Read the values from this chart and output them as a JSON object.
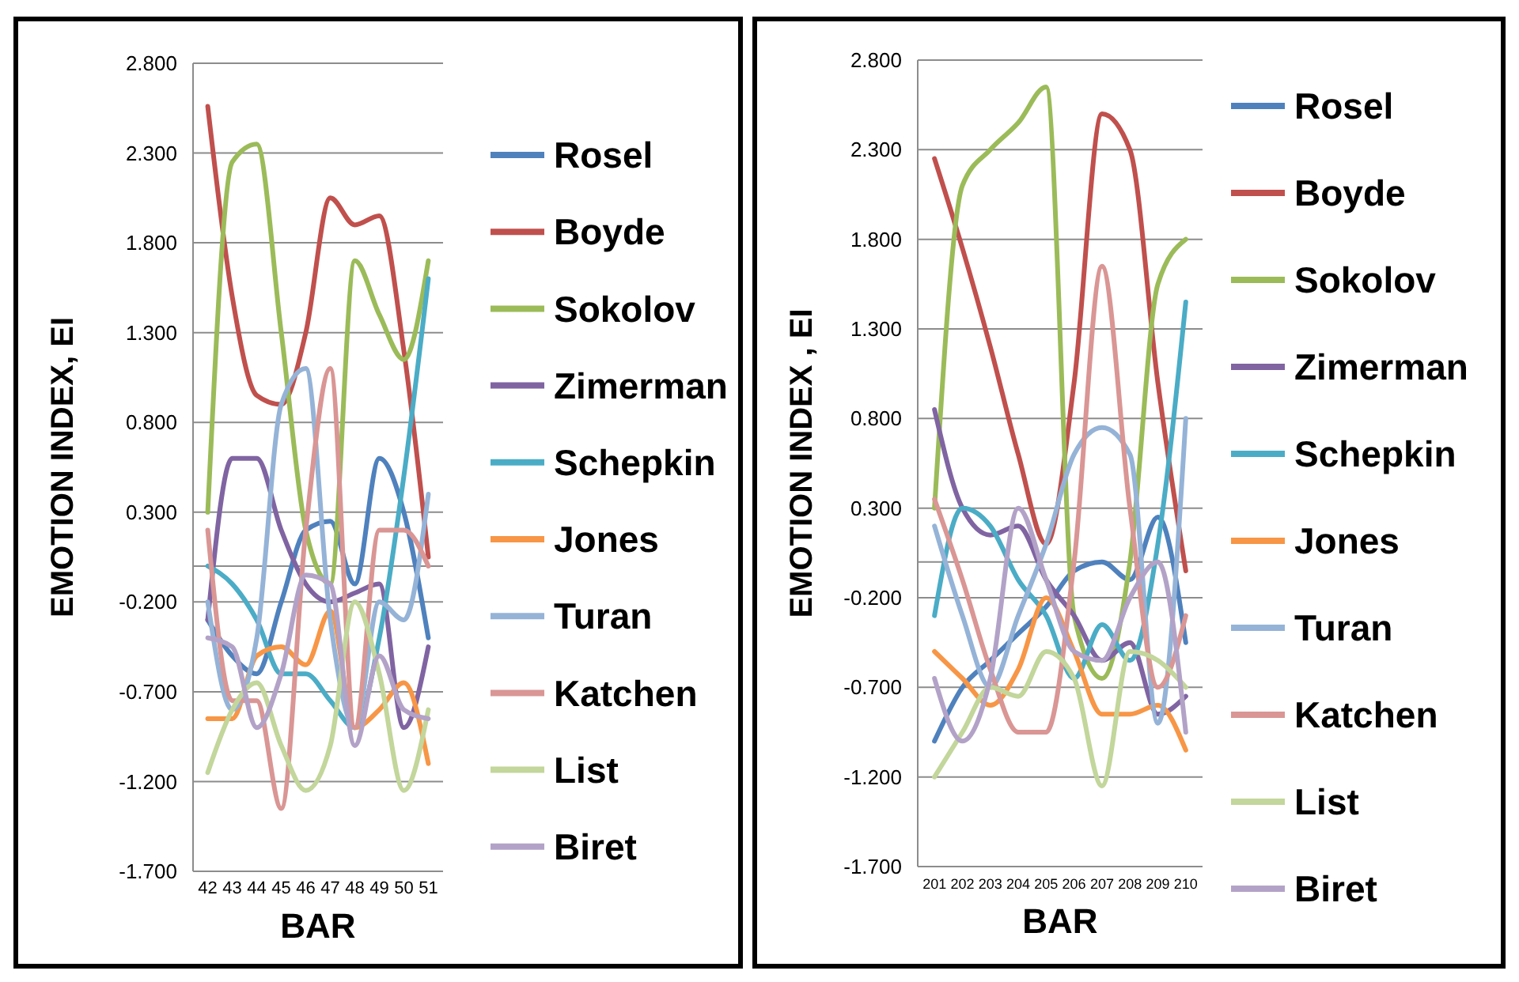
{
  "chart_data": [
    {
      "type": "line",
      "xlabel": "BAR",
      "ylabel": "EMOTION INDEX, EI",
      "categories": [
        "42",
        "43",
        "44",
        "45",
        "46",
        "47",
        "48",
        "49",
        "50",
        "51"
      ],
      "ylim": [
        -1.7,
        2.8
      ],
      "yticks": [
        {
          "value": 2.8,
          "label": "2.800"
        },
        {
          "value": 2.3,
          "label": "2.300"
        },
        {
          "value": 1.8,
          "label": "1.800"
        },
        {
          "value": 1.3,
          "label": "1.300"
        },
        {
          "value": 0.8,
          "label": "0.800"
        },
        {
          "value": 0.3,
          "label": "0.300"
        },
        {
          "value": -0.2,
          "label": "-0.200"
        },
        {
          "value": -0.7,
          "label": "-0.700"
        },
        {
          "value": -1.2,
          "label": "-1.200"
        },
        {
          "value": -1.7,
          "label": "-1.700"
        }
      ],
      "grid": "y",
      "legend": "right",
      "series": [
        {
          "name": "Rosel",
          "color": "#4f81bd",
          "values": [
            -0.3,
            -0.5,
            -0.6,
            -0.2,
            0.2,
            0.25,
            -0.1,
            0.6,
            0.3,
            -0.4
          ]
        },
        {
          "name": "Boyde",
          "color": "#c0504d",
          "values": [
            2.56,
            1.5,
            0.95,
            0.9,
            1.3,
            2.05,
            1.9,
            1.95,
            1.2,
            0.05
          ]
        },
        {
          "name": "Sokolov",
          "color": "#9bbb59",
          "values": [
            0.3,
            2.25,
            2.35,
            1.3,
            0.2,
            -0.1,
            1.7,
            1.4,
            1.15,
            1.7
          ]
        },
        {
          "name": "Zimerman",
          "color": "#8064a2",
          "values": [
            -0.3,
            0.6,
            0.6,
            0.2,
            -0.1,
            -0.2,
            -0.15,
            -0.1,
            -0.9,
            -0.45
          ]
        },
        {
          "name": "Schepkin",
          "color": "#4bacc6",
          "values": [
            0.0,
            -0.1,
            -0.3,
            -0.6,
            -0.6,
            -0.75,
            -0.9,
            -0.4,
            0.5,
            1.6
          ]
        },
        {
          "name": "Jones",
          "color": "#f79646",
          "values": [
            -0.85,
            -0.85,
            -0.5,
            -0.45,
            -0.55,
            -0.25,
            -0.9,
            -0.8,
            -0.65,
            -1.1
          ]
        },
        {
          "name": "Turan",
          "color": "#95b3d7",
          "values": [
            -0.2,
            -0.8,
            -0.4,
            0.9,
            1.1,
            -0.3,
            -0.9,
            -0.2,
            -0.3,
            0.4
          ]
        },
        {
          "name": "Katchen",
          "color": "#d99694",
          "values": [
            0.2,
            -0.75,
            -0.75,
            -1.35,
            0.2,
            1.1,
            -0.9,
            0.2,
            0.2,
            0.0
          ]
        },
        {
          "name": "List",
          "color": "#c3d69b",
          "values": [
            -1.15,
            -0.8,
            -0.65,
            -1.0,
            -1.25,
            -1.0,
            -0.2,
            -0.6,
            -1.25,
            -0.8
          ]
        },
        {
          "name": "Biret",
          "color": "#b3a2c7",
          "values": [
            -0.4,
            -0.45,
            -0.9,
            -0.6,
            -0.05,
            -0.1,
            -1.0,
            -0.5,
            -0.8,
            -0.85
          ]
        }
      ]
    },
    {
      "type": "line",
      "xlabel": "BAR",
      "ylabel": "EMOTION INDEX , EI",
      "categories": [
        "201",
        "202",
        "203",
        "204",
        "205",
        "206",
        "207",
        "208",
        "209",
        "210"
      ],
      "ylim": [
        -1.7,
        2.8
      ],
      "yticks": [
        {
          "value": 2.8,
          "label": "2.800"
        },
        {
          "value": 2.3,
          "label": "2.300"
        },
        {
          "value": 1.8,
          "label": "1.800"
        },
        {
          "value": 1.3,
          "label": "1.300"
        },
        {
          "value": 0.8,
          "label": "0.800"
        },
        {
          "value": 0.3,
          "label": "0.300"
        },
        {
          "value": -0.2,
          "label": "-0.200"
        },
        {
          "value": -0.7,
          "label": "-0.700"
        },
        {
          "value": -1.2,
          "label": "-1.200"
        },
        {
          "value": -1.7,
          "label": "-1.700"
        }
      ],
      "grid": "y",
      "legend": "right",
      "series": [
        {
          "name": "Rosel",
          "color": "#4f81bd",
          "values": [
            -1.0,
            -0.7,
            -0.55,
            -0.4,
            -0.25,
            -0.05,
            0.0,
            -0.1,
            0.25,
            -0.45
          ]
        },
        {
          "name": "Boyde",
          "color": "#c0504d",
          "values": [
            2.25,
            1.75,
            1.2,
            0.6,
            0.1,
            1.0,
            2.5,
            2.3,
            1.0,
            -0.05
          ]
        },
        {
          "name": "Sokolov",
          "color": "#9bbb59",
          "values": [
            0.3,
            2.1,
            2.3,
            2.45,
            2.65,
            -0.3,
            -0.65,
            0.0,
            1.55,
            1.8
          ]
        },
        {
          "name": "Zimerman",
          "color": "#8064a2",
          "values": [
            0.85,
            0.3,
            0.15,
            0.2,
            -0.1,
            -0.3,
            -0.55,
            -0.45,
            -0.85,
            -0.75
          ]
        },
        {
          "name": "Schepkin",
          "color": "#4bacc6",
          "values": [
            -0.3,
            0.3,
            0.2,
            -0.1,
            -0.3,
            -0.65,
            -0.35,
            -0.55,
            0.1,
            1.45
          ]
        },
        {
          "name": "Jones",
          "color": "#f79646",
          "values": [
            -0.5,
            -0.65,
            -0.8,
            -0.6,
            -0.2,
            -0.5,
            -0.85,
            -0.85,
            -0.8,
            -1.05
          ]
        },
        {
          "name": "Turan",
          "color": "#95b3d7",
          "values": [
            0.2,
            -0.3,
            -0.7,
            -0.3,
            0.1,
            0.6,
            0.75,
            0.6,
            -0.9,
            0.8
          ]
        },
        {
          "name": "Katchen",
          "color": "#d99694",
          "values": [
            0.35,
            -0.1,
            -0.6,
            -0.95,
            -0.95,
            0.0,
            1.65,
            0.3,
            -0.7,
            -0.3
          ]
        },
        {
          "name": "List",
          "color": "#c3d69b",
          "values": [
            -1.2,
            -0.95,
            -0.7,
            -0.75,
            -0.5,
            -0.65,
            -1.25,
            -0.5,
            -0.55,
            -0.7
          ]
        },
        {
          "name": "Biret",
          "color": "#b3a2c7",
          "values": [
            -0.65,
            -1.0,
            -0.65,
            0.3,
            -0.1,
            -0.5,
            -0.55,
            -0.2,
            0.0,
            -0.95
          ]
        }
      ]
    }
  ]
}
